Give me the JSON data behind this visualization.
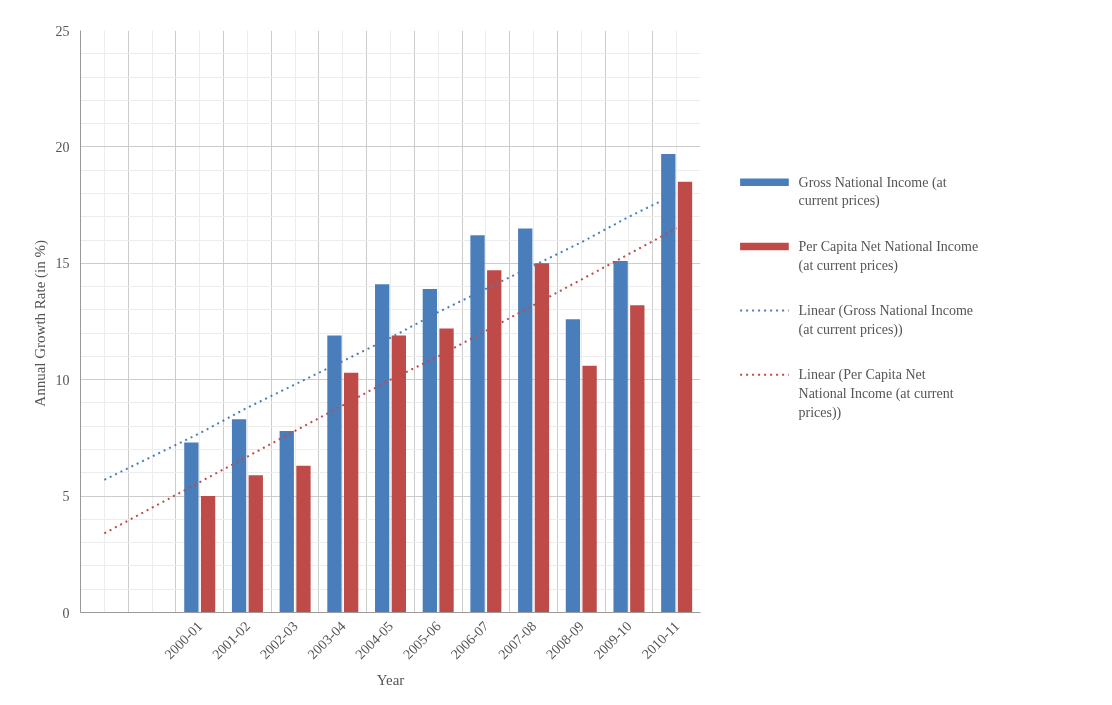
{
  "chart_data": {
    "type": "bar",
    "xlabel": "Year",
    "ylabel": "Annual Growth Rate  (in %)",
    "categories": [
      null,
      null,
      "2000-01",
      "2001-02",
      "2002-03",
      "2003-04",
      "2004-05",
      "2005-06",
      "2006-07",
      "2007-08",
      "2008-09",
      "2009-10",
      "2010-11"
    ],
    "series": [
      {
        "name": "Gross National Income (at current prices)",
        "color": "#4a7ebb",
        "values": [
          null,
          null,
          7.3,
          8.3,
          7.8,
          11.9,
          14.1,
          13.9,
          16.2,
          16.5,
          12.6,
          15.1,
          19.7
        ]
      },
      {
        "name": "Per Capita Net National Income (at current prices)",
        "color": "#be4b48",
        "values": [
          null,
          null,
          5.0,
          5.9,
          6.3,
          10.3,
          11.9,
          12.2,
          14.7,
          15.0,
          10.6,
          13.2,
          18.5
        ]
      },
      {
        "name": "Linear (Gross National Income (at current prices))",
        "type": "line",
        "line_style": "dotted",
        "color": "#4a7ebb",
        "values": [
          5.7,
          6.7,
          7.7,
          8.8,
          9.8,
          10.8,
          11.8,
          12.9,
          13.9,
          14.9,
          15.9,
          17.0,
          18.0
        ]
      },
      {
        "name": "Linear (Per Capita Net National Income (at current prices))",
        "type": "line",
        "line_style": "dotted",
        "color": "#be4b48",
        "values": [
          3.4,
          4.5,
          5.6,
          6.7,
          7.8,
          8.9,
          10.0,
          11.0,
          12.1,
          13.2,
          14.3,
          15.4,
          16.5
        ]
      }
    ],
    "ylim": [
      0,
      25
    ],
    "yticks": [
      0,
      5,
      10,
      15,
      20,
      25
    ],
    "grid": true,
    "legend": "right"
  }
}
